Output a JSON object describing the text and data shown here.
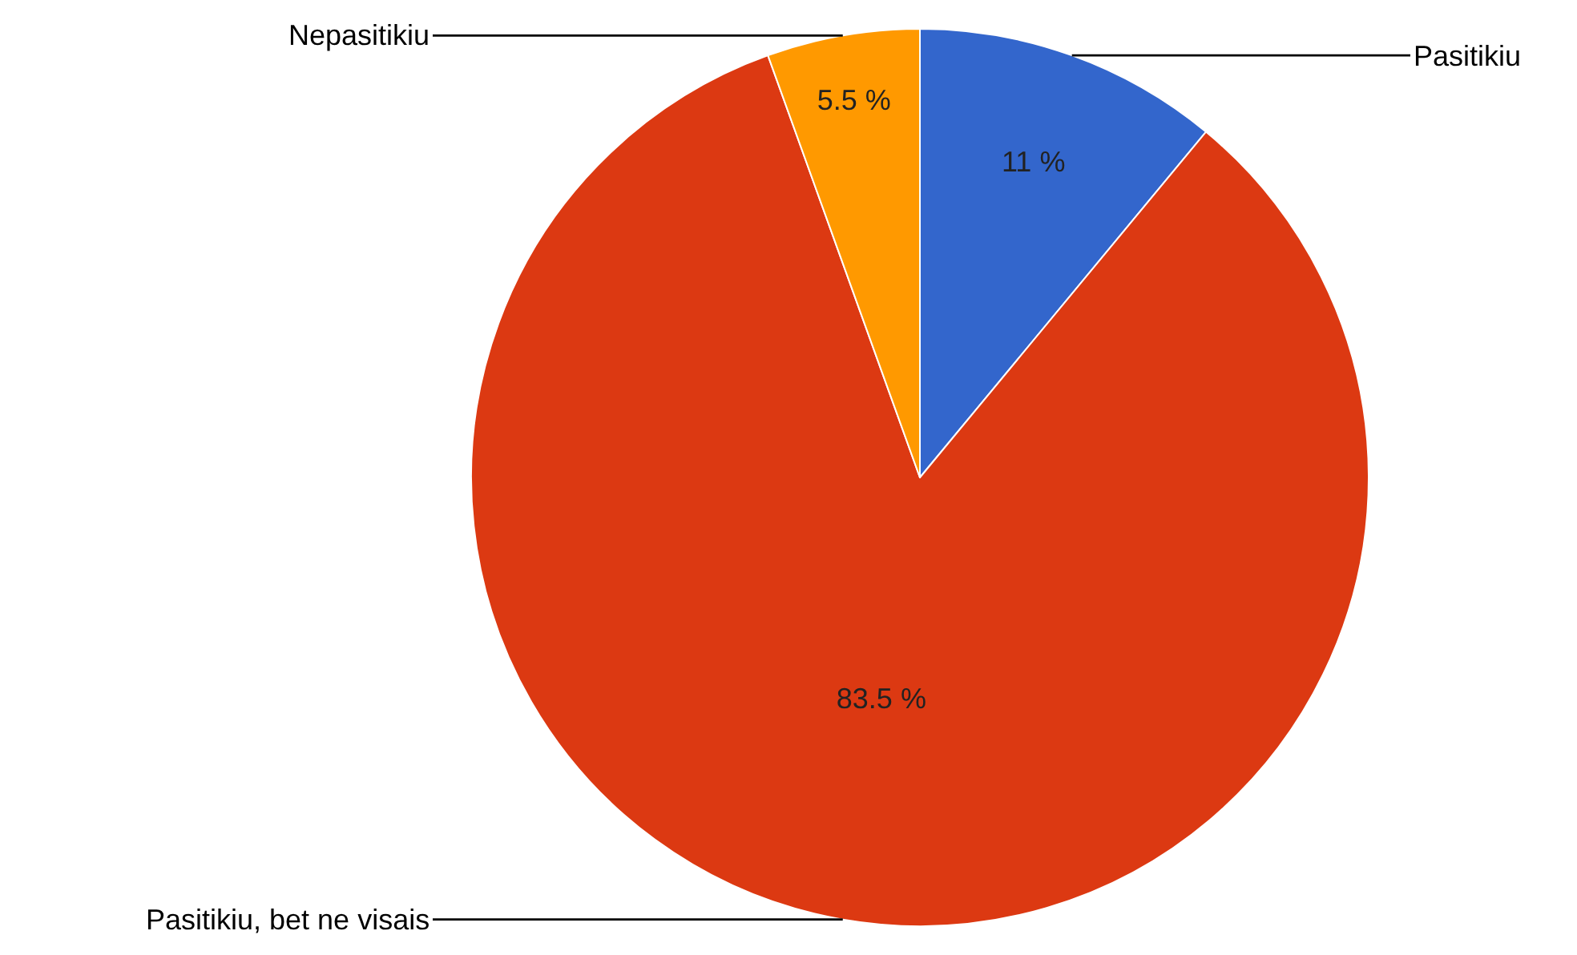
{
  "chart_data": {
    "type": "pie",
    "categories": [
      "Pasitikiu",
      "Pasitikiu, bet ne visais",
      "Nepasitikiu"
    ],
    "values": [
      11,
      83.5,
      5.5
    ],
    "colors": [
      "#3366cc",
      "#dc3912",
      "#ff9900"
    ],
    "value_labels": [
      "11 %",
      "83.5 %",
      "5.5 %"
    ],
    "legend": false
  }
}
